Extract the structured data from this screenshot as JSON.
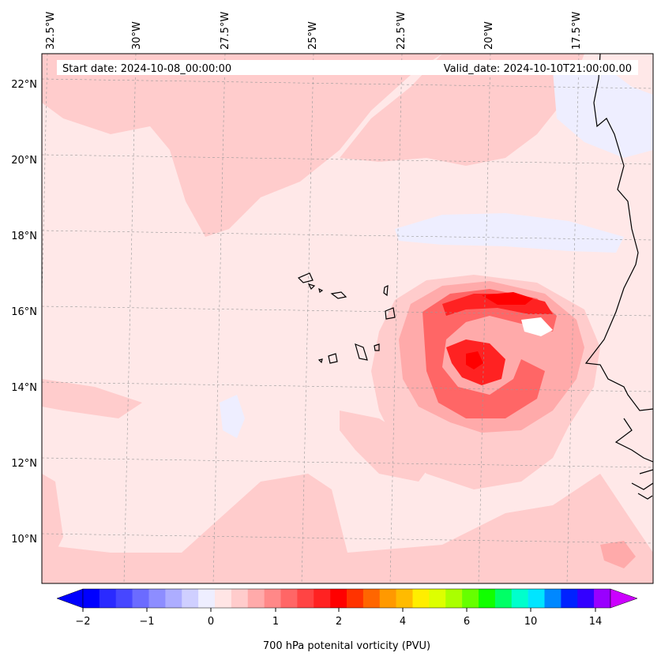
{
  "header": {
    "start_date": "Start date: 2024-10-08_00:00:00",
    "valid_date": "Valid_date: 2024-10-10T21:00:00.00"
  },
  "longitude_labels": [
    "32.5°W",
    "30°W",
    "27.5°W",
    "25°W",
    "22.5°W",
    "20°W",
    "17.5°W"
  ],
  "latitude_labels": [
    "22°N",
    "20°N",
    "18°N",
    "16°N",
    "14°N",
    "12°N",
    "10°N"
  ],
  "colorbar": {
    "title": "700 hPa potenital vorticity (PVU)",
    "tick_labels": [
      "−2",
      "−1",
      "0",
      "1",
      "2",
      "4",
      "6",
      "10",
      "14"
    ],
    "colors": [
      "#0000ff",
      "#2a2aff",
      "#4747ff",
      "#6b6bff",
      "#8d8dff",
      "#adadff",
      "#cfcfff",
      "#eeeeff",
      "#ffe5e5",
      "#ffcccc",
      "#ffaaaa",
      "#ff8888",
      "#ff6666",
      "#ff4444",
      "#ff2222",
      "#ff0000",
      "#ff3300",
      "#ff6600",
      "#ff9900",
      "#ffbb00",
      "#ffee00",
      "#ddff00",
      "#aaff00",
      "#66ff00",
      "#11ff00",
      "#00ff66",
      "#00ffcc",
      "#00e5ff",
      "#0088ff",
      "#0022ff",
      "#3300ff",
      "#9900ff"
    ],
    "extend_min_color": "#0000ff",
    "extend_max_color": "#cc00ff"
  },
  "field_colors": {
    "background": "#ffe8e8",
    "light_positive": "#ffcccc",
    "medium_positive": "#ffaaaa",
    "strong_positive": "#ff6666",
    "peak_positive": "#ff2222",
    "max_positive": "#ff0000",
    "light_negative": "#eeeeff",
    "negative": "#cfcfff"
  }
}
